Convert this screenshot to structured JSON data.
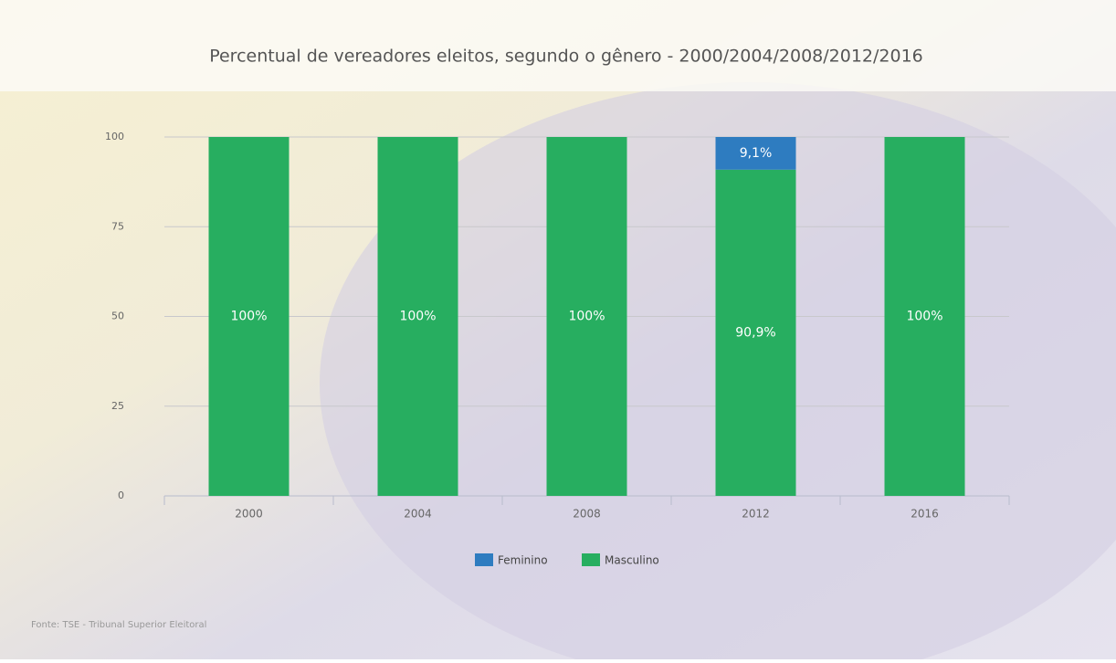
{
  "chart_data": {
    "type": "stacked_bar",
    "title": "Percentual de vereadores eleitos, segundo o gênero - 2000/2004/2008/2012/2016",
    "source": "Fonte: TSE - Tribunal Superior Eleitoral",
    "categories": [
      "2000",
      "2004",
      "2008",
      "2012",
      "2016"
    ],
    "series": [
      {
        "name": "Feminino",
        "color": "#2e7cc0",
        "values": [
          0,
          0,
          0,
          9.1,
          0
        ],
        "value_labels": [
          null,
          null,
          null,
          "9,1%",
          null
        ]
      },
      {
        "name": "Masculino",
        "color": "#27ae60",
        "values": [
          100,
          100,
          100,
          90.9,
          100
        ],
        "value_labels": [
          "100%",
          "100%",
          "100%",
          "90,9%",
          "100%"
        ]
      }
    ],
    "ylim": [
      0,
      100
    ],
    "yticks": [
      0,
      25,
      50,
      75,
      100
    ],
    "grid": true
  }
}
